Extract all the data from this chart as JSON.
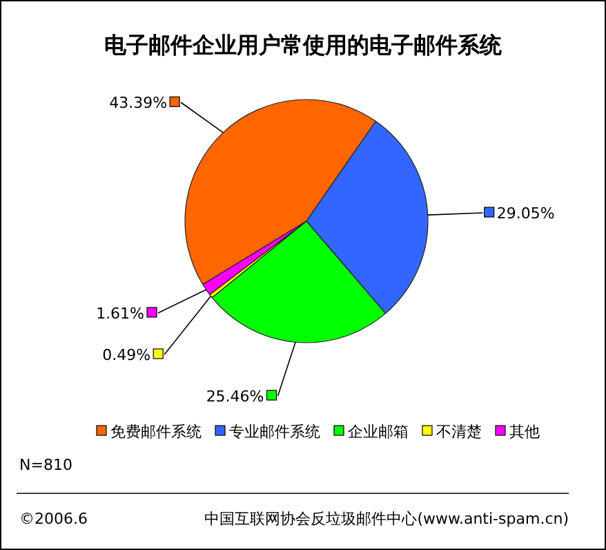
{
  "chart_data": {
    "type": "pie",
    "title": "电子邮件企业用户常使用的电子邮件系统",
    "categories": [
      "免费邮件系统",
      "专业邮件系统",
      "企业邮箱",
      "不清楚",
      "其他"
    ],
    "values": [
      43.39,
      29.05,
      25.46,
      0.49,
      1.61
    ],
    "colors": [
      "#ff6600",
      "#3366ff",
      "#00ff00",
      "#ffff00",
      "#ff00ff"
    ],
    "value_labels": [
      "43.39%",
      "29.05%",
      "25.46%",
      "0.49%",
      "1.61%"
    ],
    "legend": "bottom",
    "annotations": [
      "N=810",
      "©2006.6",
      "中国互联网协会反垃圾邮件中心(www.anti-spam.cn)"
    ]
  }
}
